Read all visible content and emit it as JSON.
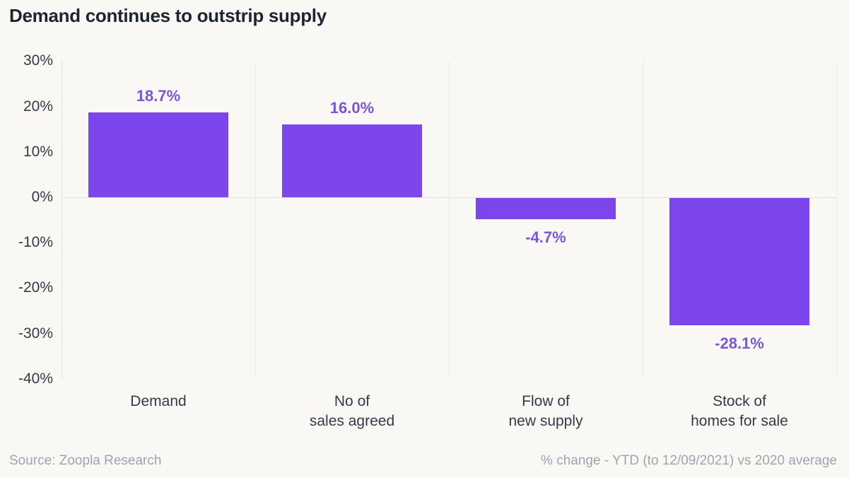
{
  "title": "Demand continues to outstrip supply",
  "footer": {
    "source": "Source: Zoopla Research",
    "note": "% change - YTD (to 12/09/2021) vs 2020 average"
  },
  "colors": {
    "background": "#f9f8f5",
    "bar": "#7c46ec",
    "data_label": "#7d55d3",
    "title_text": "#1e2430",
    "axis_text": "#333b49",
    "grid_line": "#e2dfd9",
    "separator_line": "#edebe6",
    "footer_text": "#a3a2ad"
  },
  "chart_data": {
    "type": "bar",
    "title": "Demand continues to outstrip supply",
    "categories": [
      "Demand",
      "No of sales agreed",
      "Flow of new supply",
      "Stock of homes for sale"
    ],
    "category_lines": [
      [
        "Demand"
      ],
      [
        "No of",
        "sales agreed"
      ],
      [
        "Flow of",
        "new supply"
      ],
      [
        "Stock of",
        "homes for sale"
      ]
    ],
    "values": [
      18.7,
      16.0,
      -4.7,
      -28.1
    ],
    "data_labels": [
      "18.7%",
      "16.0%",
      "-4.7%",
      "-28.1%"
    ],
    "xlabel": "",
    "ylabel": "",
    "ylim": [
      -40,
      30
    ],
    "yticks": [
      30,
      20,
      10,
      0,
      -10,
      -20,
      -30,
      -40
    ],
    "ytick_labels": [
      "30%",
      "20%",
      "10%",
      "0%",
      "-10%",
      "-20%",
      "-30%",
      "-40%"
    ],
    "legend_position": "none",
    "grid": "left axis line, zero baseline, faint vertical category separators",
    "bar_color": "#7c46ec",
    "unit_note": "% change - YTD (to 12/09/2021) vs 2020 average",
    "source": "Zoopla Research"
  }
}
